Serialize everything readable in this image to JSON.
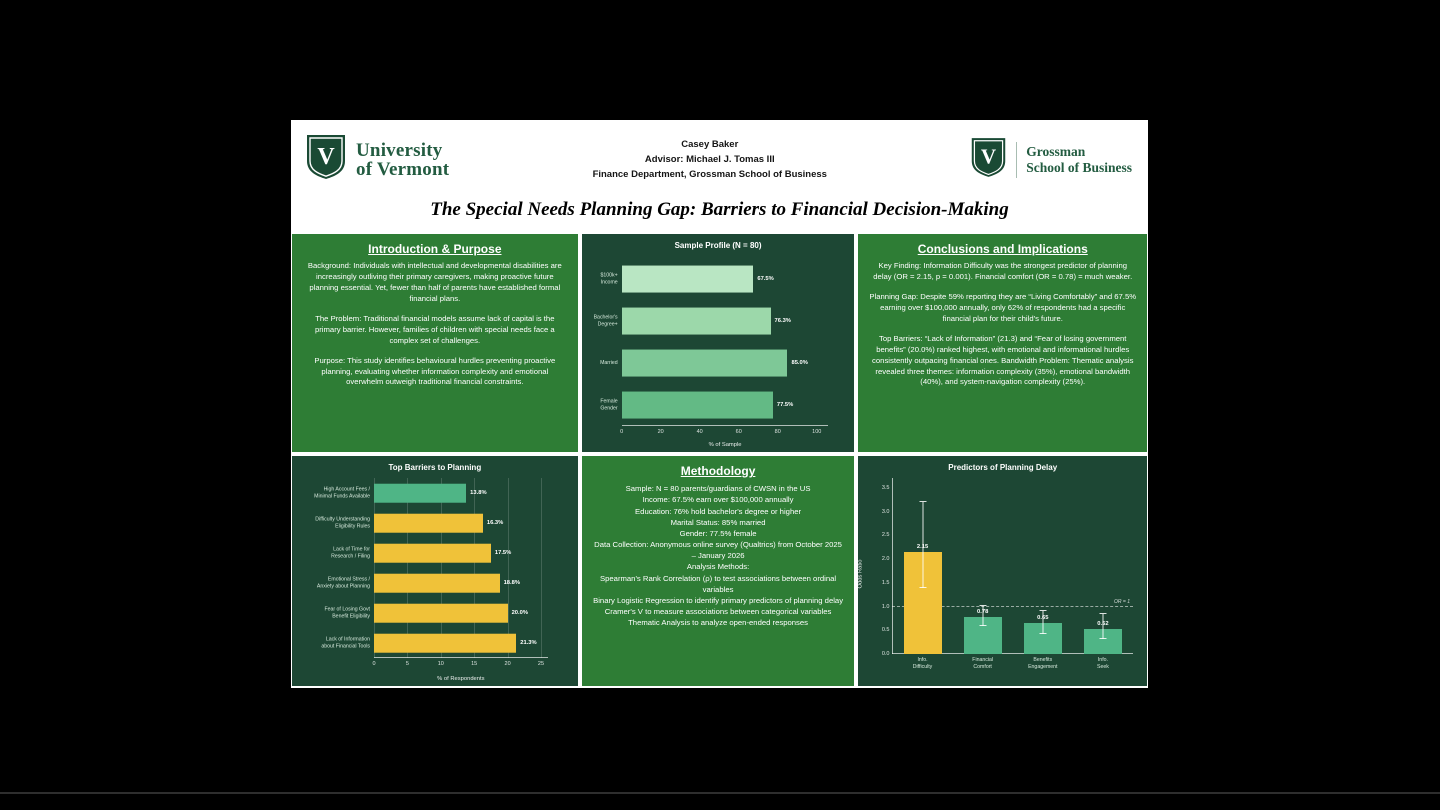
{
  "page": {
    "title": "The Special Needs Planning Gap: Barriers to Financial Decision-Making"
  },
  "header": {
    "uvm_wordmark": {
      "line1": "University",
      "line2": "of Vermont"
    },
    "author_lines": [
      "Casey Baker",
      "Advisor: Michael J. Tomas III",
      "Finance Department, Grossman School of Business"
    ],
    "gsb_wordmark": {
      "line1": "Grossman",
      "line2": "School of Business"
    }
  },
  "panels": {
    "intro": {
      "heading": "Introduction & Purpose",
      "paragraphs": [
        "Background: Individuals with intellectual and developmental disabilities are increasingly outliving their primary caregivers, making proactive future planning essential. Yet, fewer than half of parents have established formal financial plans.",
        "The Problem: Traditional financial models assume lack of capital is the primary barrier. However, families of children with special needs face a complex set of challenges.",
        "Purpose: This study identifies behavioural hurdles preventing proactive planning, evaluating whether information complexity and emotional overwhelm outweigh traditional financial constraints."
      ]
    },
    "conclusions": {
      "heading": "Conclusions and Implications",
      "paragraphs": [
        "Key Finding: Information Difficulty was the strongest predictor of planning delay (OR = 2.15, p = 0.001). Financial comfort (OR = 0.78) = much weaker.",
        "Planning Gap:  Despite 59% reporting they are “Living Comfortably” and 67.5% earning over $100,000 annually, only 62% of respondents had a specific financial plan for their child's future.",
        "Top Barriers: “Lack of Information” (21.3) and “Fear of losing government benefits” (20.0%) ranked highest, with emotional and informational hurdles consistently outpacing financial ones. Bandwidth Problem: Thematic analysis revealed three themes: information complexity (35%), emotional bandwidth (40%), and system-navigation complexity (25%)."
      ]
    },
    "methodology": {
      "heading": "Methodology",
      "lines": [
        "Sample: N = 80 parents/guardians of CWSN in the US",
        "Income: 67.5% earn over $100,000 annually",
        "Education: 76% hold bachelor's degree or higher",
        "Marital Status: 85% married",
        "Gender: 77.5% female",
        "Data Collection: Anonymous online survey (Qualtrics) from October 2025 – January 2026",
        "Analysis Methods:",
        "Spearman's Rank Correlation (ρ) to test associations between ordinal variables",
        "Binary Logistic Regression to identify primary predictors of planning delay",
        "Cramer's V to measure associations between categorical variables",
        "Thematic Analysis to analyze open-ended responses"
      ]
    }
  },
  "colors": {
    "panel_text_green": "#2e7d35",
    "panel_chart_green": "#1d4734",
    "uvm_green": "#1a4a34",
    "gold": "#f0c239",
    "bar_green": "#4fb586"
  },
  "chart_data": [
    {
      "type": "bar",
      "orientation": "horizontal",
      "title": "Sample Profile (N = 80)",
      "categories": [
        [
          "$100k+",
          "Income"
        ],
        [
          "Bachelor's",
          "Degree+"
        ],
        [
          "Married"
        ],
        [
          "Female",
          "Gender"
        ]
      ],
      "values": [
        67.5,
        76.3,
        85.0,
        77.5
      ],
      "value_labels": [
        "67.5%",
        "76.3%",
        "85.0%",
        "77.5%"
      ],
      "bar_colors": [
        "#b9e6c3",
        "#9cd8aa",
        "#7ec897",
        "#63ba85"
      ],
      "xlabel": "% of Sample",
      "x_ticks": [
        0,
        20,
        40,
        60,
        80,
        100
      ],
      "x_max": 106,
      "grid": false,
      "legend": "none"
    },
    {
      "type": "bar",
      "orientation": "horizontal",
      "title": "Top Barriers to Planning",
      "categories": [
        [
          "High Account Fees /",
          "Minimal Funds Available"
        ],
        [
          "Difficulty Understanding",
          "Eligibility Rules"
        ],
        [
          "Lack of Time for",
          "Research / Filing"
        ],
        [
          "Emotional Stress /",
          "Anxiety about Planning"
        ],
        [
          "Fear of Losing Govt",
          "Benefit Eligibility"
        ],
        [
          "Lack of Information",
          "about Financial Tools"
        ]
      ],
      "values": [
        13.8,
        16.3,
        17.5,
        18.8,
        20.0,
        21.3
      ],
      "value_labels": [
        "13.8%",
        "16.3%",
        "17.5%",
        "18.8%",
        "20.0%",
        "21.3%"
      ],
      "bar_colors": [
        "#4fb586",
        "#f0c239",
        "#f0c239",
        "#f0c239",
        "#f0c239",
        "#f0c239"
      ],
      "xlabel": "% of Respondents",
      "x_ticks": [
        0,
        5,
        10,
        15,
        20,
        25
      ],
      "x_max": 26,
      "grid": true,
      "legend": "none"
    },
    {
      "type": "bar",
      "orientation": "vertical",
      "title": "Predictors of Planning Delay",
      "categories": [
        [
          "Info.",
          "Difficulty"
        ],
        [
          "Financial",
          "Comfort"
        ],
        [
          "Benefits",
          "Engagement"
        ],
        [
          "Info.",
          "Seek"
        ]
      ],
      "values": [
        2.15,
        0.78,
        0.65,
        0.52
      ],
      "value_labels": [
        "2.15",
        "0.78",
        "0.65",
        "0.52"
      ],
      "bar_colors": [
        "#f0c239",
        "#4fb586",
        "#4fb586",
        "#4fb586"
      ],
      "error_bars": [
        [
          1.4,
          3.2
        ],
        [
          0.58,
          1.02
        ],
        [
          0.42,
          0.9
        ],
        [
          0.32,
          0.85
        ]
      ],
      "ylabel": "Odds Ratio",
      "y_ticks": [
        0.0,
        0.5,
        1.0,
        1.5,
        2.0,
        2.5,
        3.0,
        3.5
      ],
      "y_max": 3.7,
      "ref_line": {
        "value": 1.0,
        "label": "OR = 1"
      },
      "grid": false,
      "legend": "none"
    }
  ]
}
